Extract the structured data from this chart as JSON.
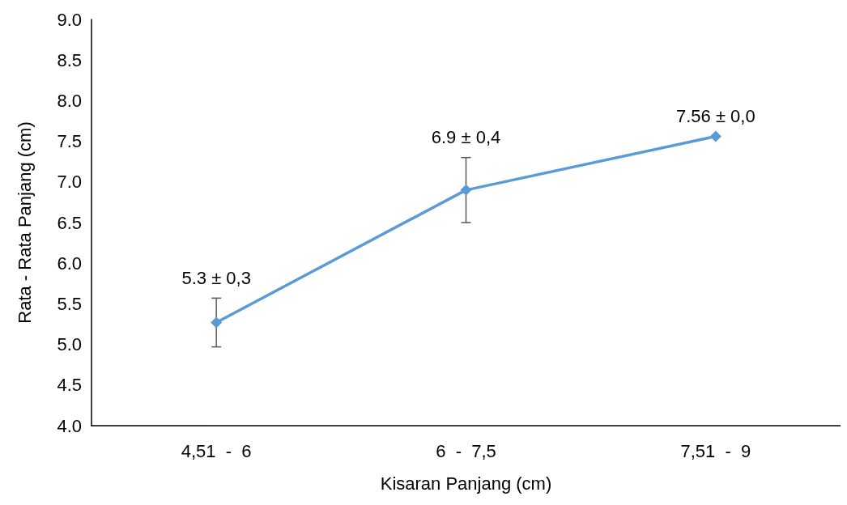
{
  "chart_data": {
    "type": "line",
    "xlabel": "Kisaran Panjang (cm)",
    "ylabel": "Rata - Rata Panjang (cm)",
    "categories": [
      "4,51  -  6",
      "6  -  7,5",
      "7,51  -  9"
    ],
    "values": [
      5.27,
      6.9,
      7.56
    ],
    "errors": [
      0.3,
      0.4,
      0
    ],
    "value_labels": [
      "5.3 ± 0,3",
      "6.9 ± 0,4",
      "7.56 ± 0,0"
    ],
    "color": "#5b9bd5",
    "marker": "diamond",
    "line_style": "solid",
    "grid": false,
    "ylim": [
      4,
      9
    ],
    "yticks": [
      {
        "value": 4,
        "label": "4.0"
      },
      {
        "value": 4.5,
        "label": "4.5"
      },
      {
        "value": 5,
        "label": "5.0"
      },
      {
        "value": 5.5,
        "label": "5.5"
      },
      {
        "value": 6,
        "label": "6.0"
      },
      {
        "value": 6.5,
        "label": "6.5"
      },
      {
        "value": 7,
        "label": "7.0"
      },
      {
        "value": 7.5,
        "label": "7.5"
      },
      {
        "value": 8,
        "label": "8.0"
      },
      {
        "value": 8.5,
        "label": "8.5"
      },
      {
        "value": 9,
        "label": "9.0"
      }
    ]
  }
}
